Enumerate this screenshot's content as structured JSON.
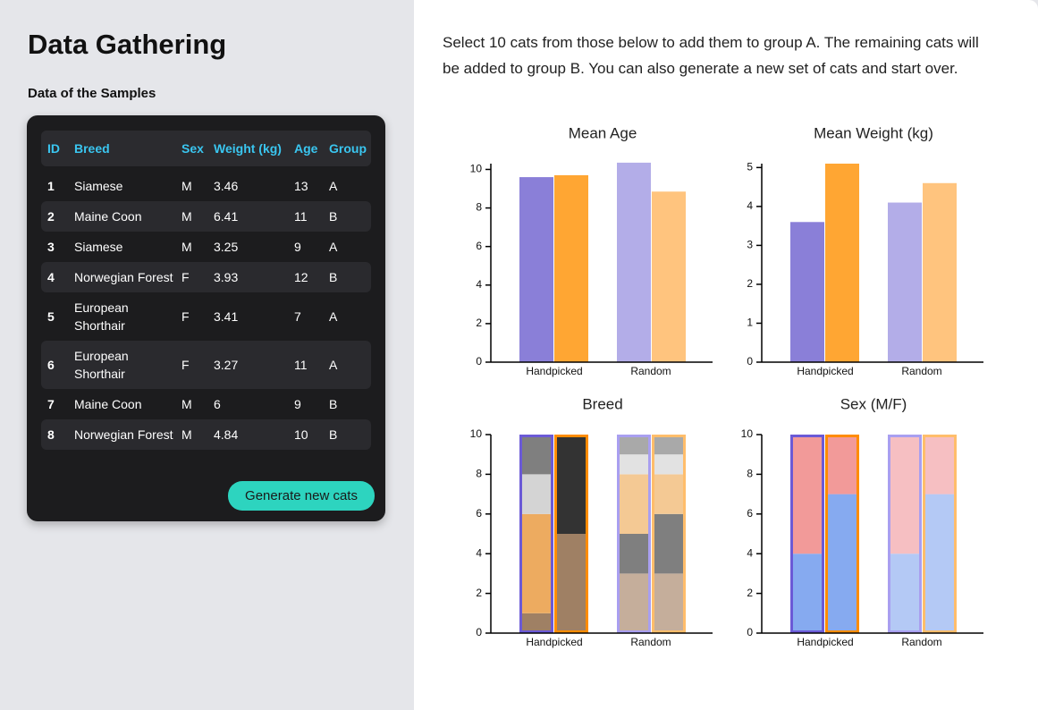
{
  "sidebar": {
    "title": "Data Gathering",
    "subtitle": "Data of the Samples",
    "table": {
      "columns": [
        "ID",
        "Breed",
        "Sex",
        "Weight (kg)",
        "Age",
        "Group"
      ],
      "rows": [
        [
          "1",
          "Siamese",
          "M",
          "3.46",
          "13",
          "A"
        ],
        [
          "2",
          "Maine Coon",
          "M",
          "6.41",
          "11",
          "B"
        ],
        [
          "3",
          "Siamese",
          "M",
          "3.25",
          "9",
          "A"
        ],
        [
          "4",
          "Norwegian Forest",
          "F",
          "3.93",
          "12",
          "B"
        ],
        [
          "5",
          "European Shorthair",
          "F",
          "3.41",
          "7",
          "A"
        ],
        [
          "6",
          "European Shorthair",
          "F",
          "3.27",
          "11",
          "A"
        ],
        [
          "7",
          "Maine Coon",
          "M",
          "6",
          "9",
          "B"
        ],
        [
          "8",
          "Norwegian Forest",
          "M",
          "4.84",
          "10",
          "B"
        ]
      ]
    },
    "button": "Generate new cats"
  },
  "instructions": "Select 10 cats from those below to add them to group A. The remaining cats will be added to group B. You can also generate a new set of cats and start over.",
  "chart_data": [
    {
      "type": "grouped_bar",
      "title": "Mean Age",
      "categories": [
        "Handpicked",
        "Random"
      ],
      "ylim": [
        0,
        10.3
      ],
      "yticks": [
        0,
        2,
        4,
        6,
        8,
        10
      ],
      "series": [
        {
          "colors": [
            "#8a7fd8",
            "#b3ade8"
          ],
          "values": [
            9.6,
            10.35
          ]
        },
        {
          "colors": [
            "#ffa633",
            "#ffc47e"
          ],
          "values": [
            9.7,
            8.85
          ]
        }
      ]
    },
    {
      "type": "grouped_bar",
      "title": "Mean Weight (kg)",
      "categories": [
        "Handpicked",
        "Random"
      ],
      "ylim": [
        0,
        5.1
      ],
      "yticks": [
        0,
        1,
        2,
        3,
        4,
        5
      ],
      "series": [
        {
          "colors": [
            "#8a7fd8",
            "#b3ade8"
          ],
          "values": [
            3.6,
            4.1
          ]
        },
        {
          "colors": [
            "#ffa633",
            "#ffc47e"
          ],
          "values": [
            5.1,
            4.6
          ]
        }
      ]
    },
    {
      "type": "stacked_bar",
      "title": "Breed",
      "categories": [
        "Handpicked",
        "Random"
      ],
      "ylim": [
        0,
        10
      ],
      "yticks": [
        0,
        2,
        4,
        6,
        8,
        10
      ],
      "stacks": [
        {
          "outline": [
            "#6b5ad6",
            "#a99ff0"
          ]
        },
        {
          "outline": [
            "#ff8c00",
            "#ffbd6b"
          ]
        }
      ],
      "series": [
        {
          "stack": 0,
          "colors": [
            "#9f8064",
            "#c5ae9b"
          ],
          "values": [
            1,
            3
          ]
        },
        {
          "stack": 0,
          "colors": [
            "#333333",
            "#7f7f7f"
          ],
          "values": [
            0,
            2
          ]
        },
        {
          "stack": 0,
          "colors": [
            "#edab60",
            "#f4c994"
          ],
          "values": [
            5,
            3
          ]
        },
        {
          "stack": 0,
          "colors": [
            "#d4d4d4",
            "#e2e2e2"
          ],
          "values": [
            2,
            1
          ]
        },
        {
          "stack": 0,
          "colors": [
            "#7f7f7f",
            "#a9a9a9"
          ],
          "values": [
            2,
            1
          ]
        },
        {
          "stack": 1,
          "colors": [
            "#9f8064",
            "#c5ae9b"
          ],
          "values": [
            5,
            3
          ]
        },
        {
          "stack": 1,
          "colors": [
            "#333333",
            "#7f7f7f"
          ],
          "values": [
            5,
            3
          ]
        },
        {
          "stack": 1,
          "colors": [
            "#edab60",
            "#f4c994"
          ],
          "values": [
            0,
            2
          ]
        },
        {
          "stack": 1,
          "colors": [
            "#d4d4d4",
            "#e2e2e2"
          ],
          "values": [
            0,
            1
          ]
        },
        {
          "stack": 1,
          "colors": [
            "#7f7f7f",
            "#a9a9a9"
          ],
          "values": [
            0,
            1
          ]
        }
      ]
    },
    {
      "type": "stacked_bar",
      "title": "Sex (M/F)",
      "categories": [
        "Handpicked",
        "Random"
      ],
      "ylim": [
        0,
        10
      ],
      "yticks": [
        0,
        2,
        4,
        6,
        8,
        10
      ],
      "stacks": [
        {
          "outline": [
            "#6b5ad6",
            "#a99ff0"
          ]
        },
        {
          "outline": [
            "#ff8c00",
            "#ffbd6b"
          ]
        }
      ],
      "series": [
        {
          "stack": 0,
          "colors": [
            "#86aaf0",
            "#b4c9f5"
          ],
          "values": [
            4,
            4
          ]
        },
        {
          "stack": 0,
          "colors": [
            "#f29a99",
            "#f6bfc2"
          ],
          "values": [
            6,
            6
          ]
        },
        {
          "stack": 1,
          "colors": [
            "#86aaf0",
            "#b4c9f5"
          ],
          "values": [
            7,
            7
          ]
        },
        {
          "stack": 1,
          "colors": [
            "#f29a99",
            "#f6bfc2"
          ],
          "values": [
            3,
            3
          ]
        }
      ]
    }
  ]
}
